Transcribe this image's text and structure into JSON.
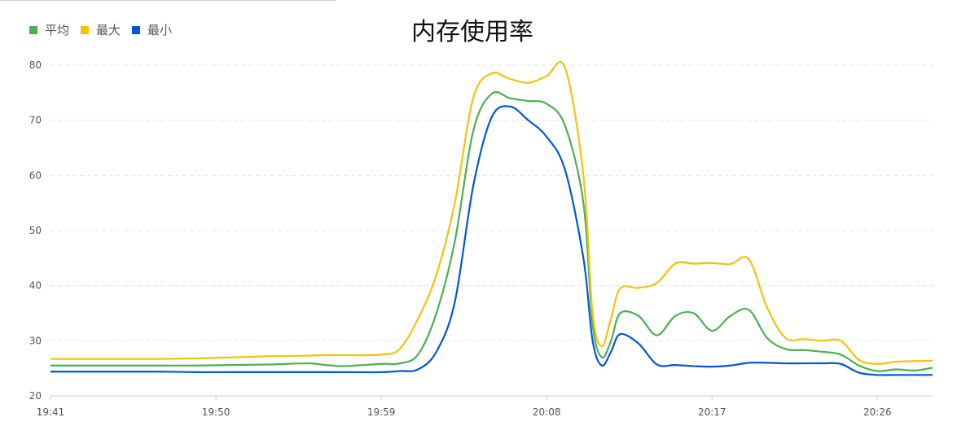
{
  "chart_data": {
    "type": "line",
    "title": "内存使用率",
    "xlabel": "",
    "ylabel": "",
    "ylim": [
      20,
      80
    ],
    "y_ticks": [
      "20",
      "30",
      "40",
      "50",
      "60",
      "70",
      "80"
    ],
    "x_ticks": [
      "19:41",
      "19:50",
      "19:59",
      "20:08",
      "20:17",
      "20:26"
    ],
    "grid": "horizontal dashed",
    "legend_position": "top-left",
    "x": [
      "19:41",
      "19:43",
      "19:45",
      "19:47",
      "19:49",
      "19:51",
      "19:53",
      "19:55",
      "19:56",
      "19:57",
      "19:59",
      "20:00",
      "20:01",
      "20:02",
      "20:03",
      "20:04",
      "20:05",
      "20:06",
      "20:07",
      "20:08",
      "20:09",
      "20:10",
      "20:10.5",
      "20:11",
      "20:11.5",
      "20:12",
      "20:13",
      "20:14",
      "20:15",
      "20:16",
      "20:17",
      "20:18",
      "20:19",
      "20:20",
      "20:21",
      "20:22",
      "20:23",
      "20:24",
      "20:25",
      "20:26",
      "20:27",
      "20:28",
      "20:29"
    ],
    "series": [
      {
        "name": "平均",
        "color": "#4caf50",
        "values": [
          25.5,
          25.5,
          25.5,
          25.5,
          25.5,
          25.6,
          25.7,
          25.9,
          25.6,
          25.4,
          25.8,
          25.9,
          27.5,
          35,
          48,
          68,
          74.8,
          74,
          73.5,
          73,
          69,
          55,
          33,
          27,
          30,
          35,
          34.5,
          31,
          34.5,
          35,
          31.8,
          34.5,
          35.6,
          30.5,
          28.5,
          28.3,
          28,
          27.5,
          25.5,
          24.5,
          24.8,
          24.6,
          25.1
        ]
      },
      {
        "name": "最大",
        "color": "#f5c20b",
        "values": [
          26.7,
          26.7,
          26.7,
          26.7,
          26.8,
          27.0,
          27.2,
          27.3,
          27.4,
          27.4,
          27.5,
          28.5,
          34,
          42,
          55,
          74,
          78.5,
          77.5,
          76.8,
          78,
          79.5,
          60,
          35,
          29,
          34,
          39.5,
          39.6,
          40.5,
          44,
          44,
          44.1,
          43.9,
          44.8,
          36,
          30.5,
          30.3,
          30,
          30,
          26.5,
          25.8,
          26.2,
          26.3,
          26.4
        ]
      },
      {
        "name": "最小",
        "color": "#0057d9",
        "values": [
          24.4,
          24.4,
          24.4,
          24.4,
          24.3,
          24.3,
          24.3,
          24.3,
          24.3,
          24.3,
          24.3,
          24.5,
          24.8,
          28,
          37,
          58,
          70.5,
          72.5,
          70,
          67,
          61,
          45,
          30,
          25.5,
          28,
          31.2,
          29.5,
          25.7,
          25.6,
          25.4,
          25.3,
          25.5,
          26.0,
          26.0,
          25.9,
          25.9,
          25.9,
          25.8,
          24.2,
          23.8,
          23.8,
          23.8,
          23.8
        ]
      }
    ]
  }
}
